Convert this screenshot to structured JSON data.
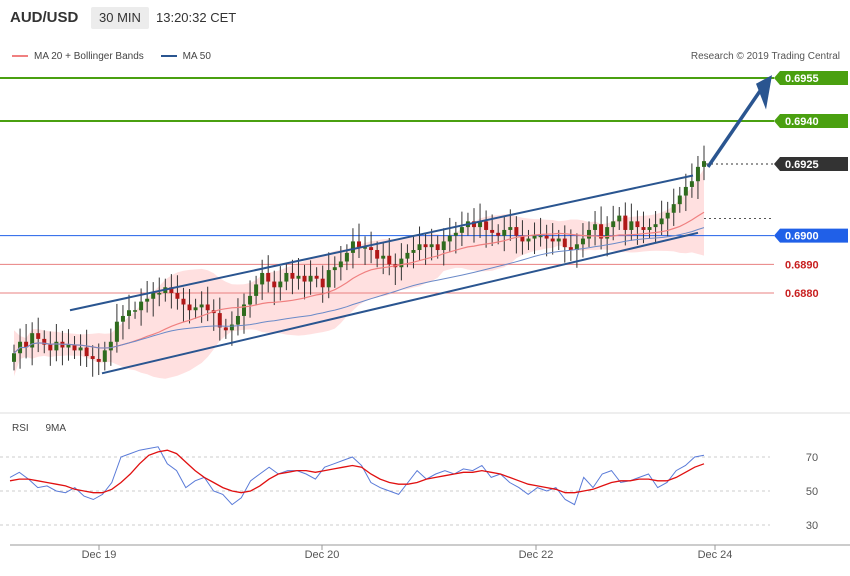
{
  "header": {
    "symbol": "AUD/USD",
    "timeframe": "30 MIN",
    "time": "13:20:32 CET"
  },
  "legend": {
    "items": [
      {
        "label": "MA 20 + Bollinger Bands",
        "color": "#f08080"
      },
      {
        "label": "MA 50",
        "color": "#2a5590"
      }
    ]
  },
  "credit": "Research © 2019 Trading Central",
  "rsi_legend": {
    "items": [
      {
        "label": "RSI",
        "color": "#5a7bd8"
      },
      {
        "label": "9MA",
        "color": "#e01010"
      }
    ]
  },
  "colors": {
    "up_candle": "#2f6b1e",
    "down_candle": "#b01818",
    "target": "#4aa010",
    "support": "#e88080",
    "pivot": "#2060e8",
    "current": "#333333",
    "channel": "#2a5590"
  },
  "chart_data": [
    {
      "type": "candlestick",
      "title": "AUD/USD 30 MIN",
      "x_tick_labels": [
        "Dec 19",
        "Dec 20",
        "Dec 22",
        "Dec 24"
      ],
      "ylim": [
        0.6855,
        0.6965
      ],
      "price_levels": [
        {
          "label": "0.6955",
          "value": 0.6955,
          "kind": "target"
        },
        {
          "label": "0.6940",
          "value": 0.694,
          "kind": "target"
        },
        {
          "label": "0.6925",
          "value": 0.6925,
          "kind": "current"
        },
        {
          "label": "0.6900",
          "value": 0.69,
          "kind": "pivot"
        },
        {
          "label": "0.6890",
          "value": 0.689,
          "kind": "support"
        },
        {
          "label": "0.6880",
          "value": 0.688,
          "kind": "support"
        }
      ],
      "close_series_approx": [
        0.6859,
        0.6863,
        0.6861,
        0.6866,
        0.6864,
        0.6862,
        0.686,
        0.6863,
        0.6861,
        0.6862,
        0.686,
        0.6861,
        0.6858,
        0.6857,
        0.6856,
        0.686,
        0.6863,
        0.687,
        0.6872,
        0.6874,
        0.6874,
        0.6877,
        0.6878,
        0.688,
        0.688,
        0.6882,
        0.688,
        0.6878,
        0.6876,
        0.6874,
        0.6875,
        0.6876,
        0.6874,
        0.6873,
        0.6868,
        0.6867,
        0.6869,
        0.6872,
        0.6876,
        0.6879,
        0.6883,
        0.6887,
        0.6884,
        0.6882,
        0.6884,
        0.6887,
        0.6885,
        0.6886,
        0.6884,
        0.6886,
        0.6885,
        0.6882,
        0.6888,
        0.6889,
        0.6891,
        0.6894,
        0.6898,
        0.6896,
        0.6896,
        0.6895,
        0.6892,
        0.6893,
        0.689,
        0.6889,
        0.6892,
        0.6894,
        0.6895,
        0.6897,
        0.6896,
        0.6897,
        0.6895,
        0.6898,
        0.69,
        0.6901,
        0.6903,
        0.6905,
        0.6903,
        0.6905,
        0.6902,
        0.6901,
        0.69,
        0.6902,
        0.6903,
        0.69,
        0.6898,
        0.6899,
        0.69,
        0.69,
        0.6899,
        0.6898,
        0.6899,
        0.6896,
        0.6895,
        0.6897,
        0.6899,
        0.6902,
        0.6904,
        0.6899,
        0.6903,
        0.6905,
        0.6907,
        0.6902,
        0.6905,
        0.6903,
        0.6902,
        0.6903,
        0.6904,
        0.6906,
        0.6908,
        0.6911,
        0.6914,
        0.6917,
        0.6919,
        0.6924,
        0.6926
      ],
      "ma50_approx_start_end": [
        0.6858,
        0.6906
      ],
      "channel": {
        "upper": [
          [
            0.6874,
            0.6921
          ]
        ],
        "lower": [
          [
            0.6852,
            0.6901
          ]
        ]
      },
      "projection": "up-arrow toward 0.6955"
    },
    {
      "type": "line",
      "title": "RSI",
      "ylim": [
        20,
        80
      ],
      "y_tick_labels": [
        "70",
        "50",
        "30"
      ],
      "series": [
        {
          "name": "RSI",
          "values": [
            58,
            61,
            57,
            52,
            53,
            50,
            49,
            52,
            47,
            45,
            48,
            55,
            70,
            72,
            74,
            75,
            76,
            66,
            62,
            52,
            56,
            58,
            50,
            48,
            42,
            46,
            56,
            60,
            64,
            60,
            62,
            62,
            60,
            57,
            64,
            66,
            68,
            70,
            65,
            55,
            52,
            50,
            48,
            55,
            62,
            57,
            60,
            62,
            60,
            63,
            62,
            65,
            58,
            60,
            55,
            52,
            48,
            52,
            50,
            52,
            45,
            42,
            58,
            52,
            60,
            62,
            55,
            56,
            58,
            60,
            52,
            55,
            62,
            65,
            70,
            71
          ]
        },
        {
          "name": "9MA",
          "values": [
            56,
            57,
            57,
            56,
            55,
            54,
            53,
            51,
            50,
            49,
            49,
            51,
            55,
            60,
            66,
            71,
            73,
            74,
            72,
            67,
            62,
            58,
            55,
            52,
            50,
            49,
            50,
            53,
            57,
            60,
            61,
            62,
            62,
            61,
            62,
            63,
            64,
            65,
            64,
            60,
            57,
            55,
            54,
            54,
            55,
            57,
            58,
            59,
            60,
            61,
            61,
            62,
            61,
            60,
            58,
            56,
            54,
            53,
            52,
            51,
            49,
            49,
            50,
            51,
            53,
            55,
            56,
            56,
            57,
            57,
            56,
            56,
            58,
            61,
            64,
            66
          ]
        }
      ]
    }
  ]
}
